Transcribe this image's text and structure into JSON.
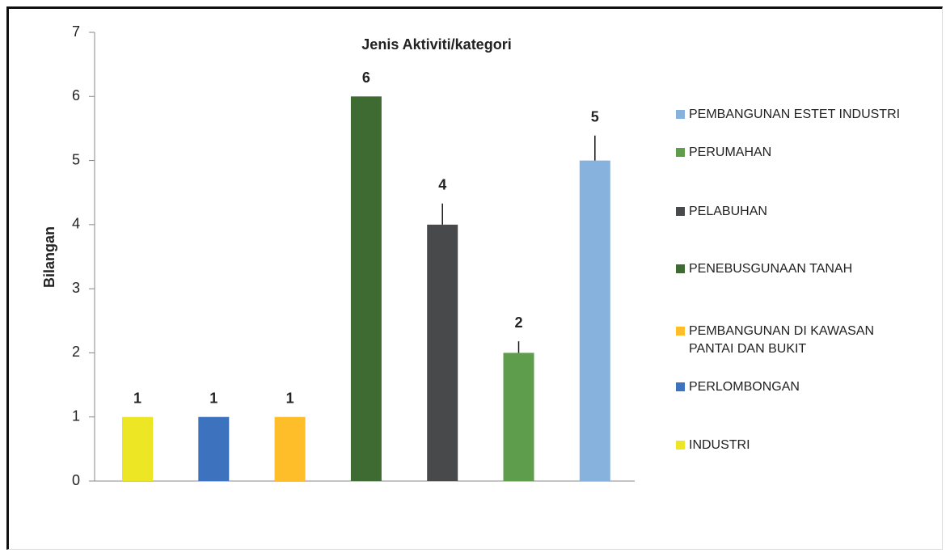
{
  "chart_data": {
    "type": "bar",
    "title": "Jenis Aktiviti/kategori",
    "y_label": "Bilangan",
    "ylim": [
      0,
      7
    ],
    "yticks": [
      0,
      1,
      2,
      3,
      4,
      5,
      6,
      7
    ],
    "series": [
      {
        "name": "INDUSTRI",
        "color": "#ece624",
        "values": [
          1
        ],
        "errors": [
          null
        ]
      },
      {
        "name": "PERLOMBONGAN",
        "color": "#3c72be",
        "values": [
          1
        ],
        "errors": [
          null
        ]
      },
      {
        "name": "PEMBANGUNAN DI KAWASAN PANTAI DAN BUKIT",
        "color": "#fdbe2a",
        "values": [
          1
        ],
        "errors": [
          null
        ]
      },
      {
        "name": "PENEBUSGUNAAN TANAH",
        "color": "#3d6b31",
        "values": [
          6
        ],
        "errors": [
          null
        ]
      },
      {
        "name": "PELABUHAN",
        "color": "#48494b",
        "values": [
          4
        ],
        "errors": [
          0.33
        ]
      },
      {
        "name": "PERUMAHAN",
        "color": "#5d9d4b",
        "values": [
          2
        ],
        "errors": [
          0.18
        ]
      },
      {
        "name": "PEMBANGUNAN ESTET INDUSTRI",
        "color": "#88b2de",
        "values": [
          5
        ],
        "errors": [
          0.39
        ]
      }
    ]
  }
}
